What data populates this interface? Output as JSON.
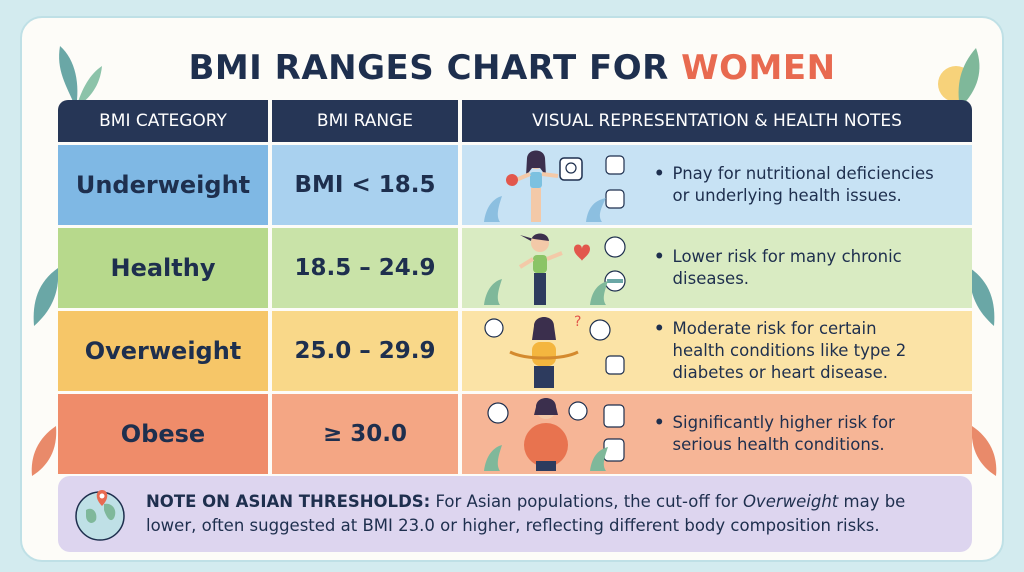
{
  "title": {
    "main": "BMI RANGES CHART FOR ",
    "accent": "WOMEN"
  },
  "headers": {
    "category": "BMI CATEGORY",
    "range": "BMI RANGE",
    "notes": "VISUAL REPRESENTATION & HEALTH NOTES"
  },
  "rows": [
    {
      "category": "Underweight",
      "range": "BMI < 18.5",
      "note_line1": "Pnay for nutritional deficiencies",
      "note_line2": "or underlying health issues.",
      "color": "#7fb8e4"
    },
    {
      "category": "Healthy",
      "range": "18.5 – 24.9",
      "note_line1": "Lower risk for many chronic",
      "note_line2": "diseases.",
      "color": "#b7d98c"
    },
    {
      "category": "Overweight",
      "range": "25.0 – 29.9",
      "note_line1": "Moderate risk for certain",
      "note_line2": "health conditions like type 2",
      "note_line3": "diabetes or heart disease.",
      "color": "#f6c668"
    },
    {
      "category": "Obese",
      "range": "≥ 30.0",
      "note_line1": "Significantly higher risk for",
      "note_line2": "serious health conditions.",
      "color": "#ef8c6a"
    }
  ],
  "asian_note": {
    "label": "NOTE ON ASIAN THRESHOLDS:",
    "text_a": " For Asian populations, the cut-off for ",
    "italic": "Overweight",
    "text_b": " may be",
    "line2": "lower, often suggested at BMI 23.0 or higher, reflecting different body composition risks."
  },
  "icons": {
    "globe": "globe-pin-icon",
    "scale": "scale-icon",
    "heart": "heartbeat-icon",
    "dumbbell": "dumbbell-icon",
    "joint": "joint-pain-icon"
  },
  "colors": {
    "header": "#263656",
    "accent": "#e86a50",
    "note_bg": "#ddd5ef"
  }
}
